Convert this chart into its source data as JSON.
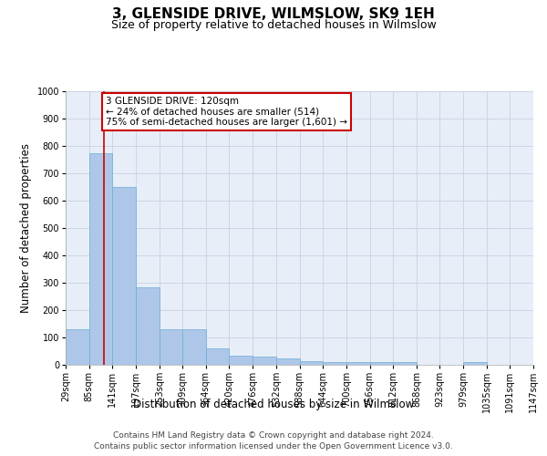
{
  "title": "3, GLENSIDE DRIVE, WILMSLOW, SK9 1EH",
  "subtitle": "Size of property relative to detached houses in Wilmslow",
  "xlabel": "Distribution of detached houses by size in Wilmslow",
  "ylabel": "Number of detached properties",
  "footer_line1": "Contains HM Land Registry data © Crown copyright and database right 2024.",
  "footer_line2": "Contains public sector information licensed under the Open Government Licence v3.0.",
  "bar_edges": [
    29,
    85,
    141,
    197,
    253,
    309,
    364,
    420,
    476,
    532,
    588,
    644,
    700,
    756,
    812,
    868,
    923,
    979,
    1035,
    1091,
    1147
  ],
  "bar_heights": [
    130,
    775,
    650,
    285,
    130,
    130,
    60,
    35,
    30,
    25,
    15,
    10,
    10,
    10,
    10,
    0,
    0,
    10,
    0,
    0,
    0
  ],
  "bar_color": "#aec7e8",
  "bar_edge_color": "#6baed6",
  "property_size": 120,
  "property_line_color": "#cc0000",
  "annotation_line1": "3 GLENSIDE DRIVE: 120sqm",
  "annotation_line2": "← 24% of detached houses are smaller (514)",
  "annotation_line3": "75% of semi-detached houses are larger (1,601) →",
  "annotation_box_color": "#cc0000",
  "annotation_box_fill": "#ffffff",
  "ylim": [
    0,
    1000
  ],
  "xlim": [
    29,
    1147
  ],
  "tick_labels": [
    "29sqm",
    "85sqm",
    "141sqm",
    "197sqm",
    "253sqm",
    "309sqm",
    "364sqm",
    "420sqm",
    "476sqm",
    "532sqm",
    "588sqm",
    "644sqm",
    "700sqm",
    "756sqm",
    "812sqm",
    "868sqm",
    "923sqm",
    "979sqm",
    "1035sqm",
    "1091sqm",
    "1147sqm"
  ],
  "grid_color": "#cdd5e3",
  "bg_color": "#e8eef8",
  "title_fontsize": 11,
  "subtitle_fontsize": 9,
  "label_fontsize": 8.5,
  "tick_fontsize": 7,
  "footer_fontsize": 6.5,
  "annotation_fontsize": 7.5
}
